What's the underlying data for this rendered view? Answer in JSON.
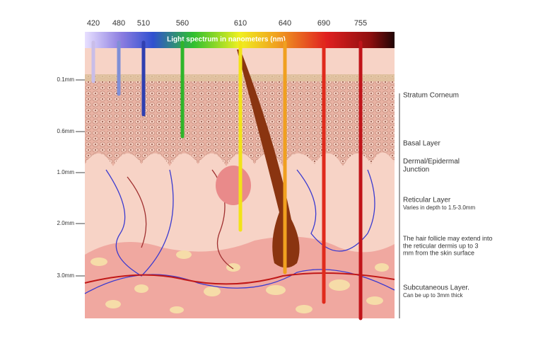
{
  "spectrum": {
    "title": "Light spectrum in nanometers (nm)",
    "wavelengths": [
      {
        "label": "420",
        "color": "#c9bde8"
      },
      {
        "label": "480",
        "color": "#7f8fd6"
      },
      {
        "label": "510",
        "color": "#2f3fb0"
      },
      {
        "label": "560",
        "color": "#2fb52a"
      },
      {
        "label": "610",
        "color": "#f2e318"
      },
      {
        "label": "640",
        "color": "#f0a020"
      },
      {
        "label": "690",
        "color": "#e02a1c"
      },
      {
        "label": "755",
        "color": "#c0141a"
      }
    ]
  },
  "depth_scale": [
    "0.1mm",
    "0.6mm",
    "1.0mm",
    "2.0mm",
    "3.0mm"
  ],
  "layers": [
    {
      "name": "Stratum Corneum"
    },
    {
      "name": "Basal Layer"
    },
    {
      "name": "Dermal/Epidermal Junction"
    },
    {
      "name": "Reticular Layer",
      "note": "Varies in depth to 1.5-3.0mm"
    },
    {
      "name": "The hair follicle may extend into the reticular dermis up to 3 mm from the skin surface"
    },
    {
      "name": "Subcutaneous Layer.",
      "note": "Can be up to 3mm thick"
    }
  ]
}
